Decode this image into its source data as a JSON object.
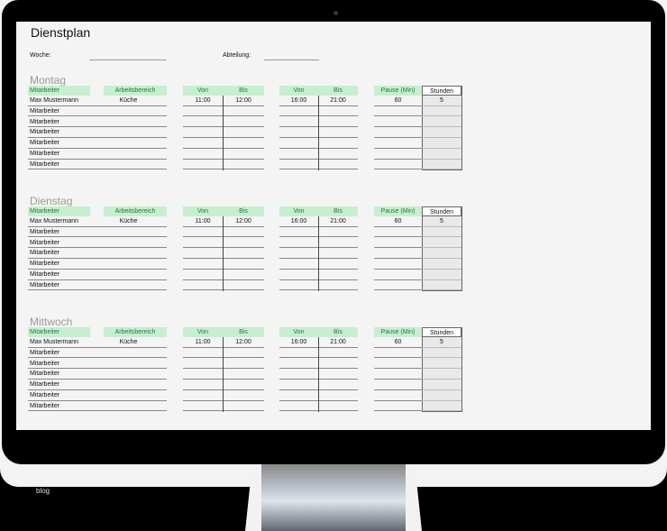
{
  "sheet": {
    "title": "Dienstplan",
    "woche_label": "Woche:",
    "woche_value": "",
    "abteilung_label": "Abteilung:",
    "abteilung_value": ""
  },
  "headers": {
    "mitarbeiter": "Mitarbeiter",
    "arbeitsbereich": "Arbeitsbereich",
    "von": "Von",
    "bis": "Bis",
    "pause": "Pause (Min)",
    "stunden": "Stunden"
  },
  "days": [
    {
      "name": "Montag",
      "rows": [
        {
          "mitarbeiter": "Max Mustermann",
          "bereich": "Küche",
          "von1": "11:00",
          "bis1": "12:00",
          "von2": "16:00",
          "bis2": "21:00",
          "pause": "60",
          "stunden": "5"
        },
        {
          "mitarbeiter": "Mitarbeiter"
        },
        {
          "mitarbeiter": "Mitarbeiter"
        },
        {
          "mitarbeiter": "Mitarbeiter"
        },
        {
          "mitarbeiter": "Mitarbeiter"
        },
        {
          "mitarbeiter": "Mitarbeiter"
        },
        {
          "mitarbeiter": "Mitarbeiter"
        }
      ]
    },
    {
      "name": "Dienstag",
      "rows": [
        {
          "mitarbeiter": "Max Mustermann",
          "bereich": "Küche",
          "von1": "11:00",
          "bis1": "12:00",
          "von2": "16:00",
          "bis2": "21:00",
          "pause": "60",
          "stunden": "5"
        },
        {
          "mitarbeiter": "Mitarbeiter"
        },
        {
          "mitarbeiter": "Mitarbeiter"
        },
        {
          "mitarbeiter": "Mitarbeiter"
        },
        {
          "mitarbeiter": "Mitarbeiter"
        },
        {
          "mitarbeiter": "Mitarbeiter"
        },
        {
          "mitarbeiter": "Mitarbeiter"
        }
      ]
    },
    {
      "name": "Mittwoch",
      "rows": [
        {
          "mitarbeiter": "Max Mustermann",
          "bereich": "Küche",
          "von1": "11:00",
          "bis1": "12:00",
          "von2": "16:00",
          "bis2": "21:00",
          "pause": "60",
          "stunden": "5"
        },
        {
          "mitarbeiter": "Mitarbeiter"
        },
        {
          "mitarbeiter": "Mitarbeiter"
        },
        {
          "mitarbeiter": "Mitarbeiter"
        },
        {
          "mitarbeiter": "Mitarbeiter"
        },
        {
          "mitarbeiter": "Mitarbeiter"
        },
        {
          "mitarbeiter": "Mitarbeiter"
        }
      ]
    }
  ],
  "watermark": "blog",
  "colors": {
    "header_bg": "#c6efce",
    "header_text": "#1e7a35"
  }
}
